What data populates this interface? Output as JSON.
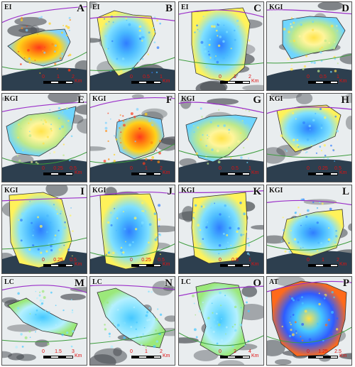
{
  "panels": [
    {
      "letter": "A",
      "region": "EI",
      "ticks": [
        "0",
        "1",
        "2"
      ],
      "unit": "Km",
      "variant": "red"
    },
    {
      "letter": "B",
      "region": "EI",
      "ticks": [
        "0",
        "0.5",
        "1"
      ],
      "unit": "Km",
      "variant": "blue"
    },
    {
      "letter": "C",
      "region": "EI",
      "ticks": [
        "0",
        "1",
        "2"
      ],
      "unit": "Km",
      "variant": "blue"
    },
    {
      "letter": "D",
      "region": "KGI",
      "ticks": [
        "0",
        "0.5",
        "1"
      ],
      "unit": "Km",
      "variant": "yellow"
    },
    {
      "letter": "E",
      "region": "KGI",
      "ticks": [
        "0",
        "0.25",
        "0.5"
      ],
      "unit": "Km",
      "variant": "yellow"
    },
    {
      "letter": "F",
      "region": "KGI",
      "ticks": [
        "0",
        "1",
        "2"
      ],
      "unit": "Km",
      "variant": "red"
    },
    {
      "letter": "G",
      "region": "KGI",
      "ticks": [
        "0",
        "0.5",
        "1"
      ],
      "unit": "Km",
      "variant": "yellow"
    },
    {
      "letter": "H",
      "region": "KGI",
      "ticks": [
        "0",
        "0.25",
        "0.5"
      ],
      "unit": "Km",
      "variant": "blue"
    },
    {
      "letter": "I",
      "region": "KGI",
      "ticks": [
        "0",
        "0.25",
        "0.5"
      ],
      "unit": "Km",
      "variant": "blue"
    },
    {
      "letter": "J",
      "region": "KGI",
      "ticks": [
        "0",
        "0.25",
        "0.5"
      ],
      "unit": "Km",
      "variant": "blue"
    },
    {
      "letter": "K",
      "region": "KGI",
      "ticks": [
        "0",
        "0.5",
        "1"
      ],
      "unit": "Km",
      "variant": "blue"
    },
    {
      "letter": "L",
      "region": "KGI",
      "ticks": [
        "0",
        "1",
        "2"
      ],
      "unit": "Km",
      "variant": "blue"
    },
    {
      "letter": "M",
      "region": "LC",
      "ticks": [
        "0",
        "1.5",
        "3"
      ],
      "unit": "Km",
      "variant": "cyan"
    },
    {
      "letter": "N",
      "region": "LC",
      "ticks": [
        "0",
        "1",
        "2"
      ],
      "unit": "Km",
      "variant": "cyan"
    },
    {
      "letter": "O",
      "region": "LC",
      "ticks": [
        "0",
        "2",
        "4"
      ],
      "unit": "Km",
      "variant": "cyan"
    },
    {
      "letter": "P",
      "region": "AT",
      "ticks": [
        "0",
        "1.25",
        "2.5"
      ],
      "unit": "Km",
      "variant": "mixed"
    }
  ],
  "colors": {
    "red": [
      "#ff3a1a",
      "#ff8a10",
      "#ffd21a",
      "#7fd3ff"
    ],
    "blue": [
      "#2f7dff",
      "#48b8ff",
      "#7fe0ff",
      "#fff25a"
    ],
    "yellow": [
      "#ffe34a",
      "#fff59a",
      "#bfe98a",
      "#6fd5ff"
    ],
    "cyan": [
      "#46c8ff",
      "#7fe0ff",
      "#b4f0ff",
      "#9be87a"
    ],
    "mixed": [
      "#ffe34a",
      "#46c8ff",
      "#2f5bff",
      "#ff6a1a"
    ],
    "snow": "#e9edef",
    "rock": "#4e5257",
    "sea": "#2d3f4f",
    "scale_text": "#e01010"
  }
}
